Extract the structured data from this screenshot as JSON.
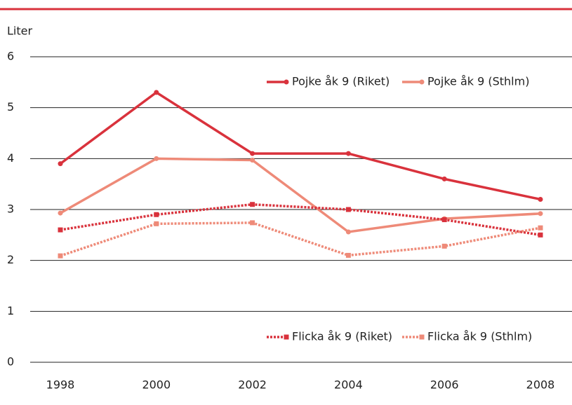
{
  "chart_data": {
    "type": "line",
    "y_label": "Liter",
    "categories": [
      "1998",
      "2000",
      "2002",
      "2004",
      "2006",
      "2008"
    ],
    "series": [
      {
        "name": "Pojke åk 9 (Riket)",
        "color": "#d9323c",
        "style": "solid",
        "marker": "circle",
        "values": [
          3.9,
          5.3,
          4.1,
          4.1,
          3.6,
          3.2
        ]
      },
      {
        "name": "Pojke åk 9 (Sthlm)",
        "color": "#ee8a78",
        "style": "solid",
        "marker": "circle",
        "values": [
          2.93,
          4.0,
          3.97,
          2.56,
          2.82,
          2.92
        ]
      },
      {
        "name": "Flicka åk 9 (Riket)",
        "color": "#d9323c",
        "style": "dotted",
        "marker": "square",
        "values": [
          2.6,
          2.9,
          3.1,
          3.0,
          2.8,
          2.5
        ]
      },
      {
        "name": "Flicka åk 9 (Sthlm)",
        "color": "#ee8a78",
        "style": "dotted",
        "marker": "square",
        "values": [
          2.09,
          2.72,
          2.74,
          2.1,
          2.28,
          2.64
        ]
      }
    ],
    "ylim": [
      0,
      6
    ],
    "yticks": [
      0,
      1,
      2,
      3,
      4,
      5,
      6
    ],
    "grid": true
  }
}
